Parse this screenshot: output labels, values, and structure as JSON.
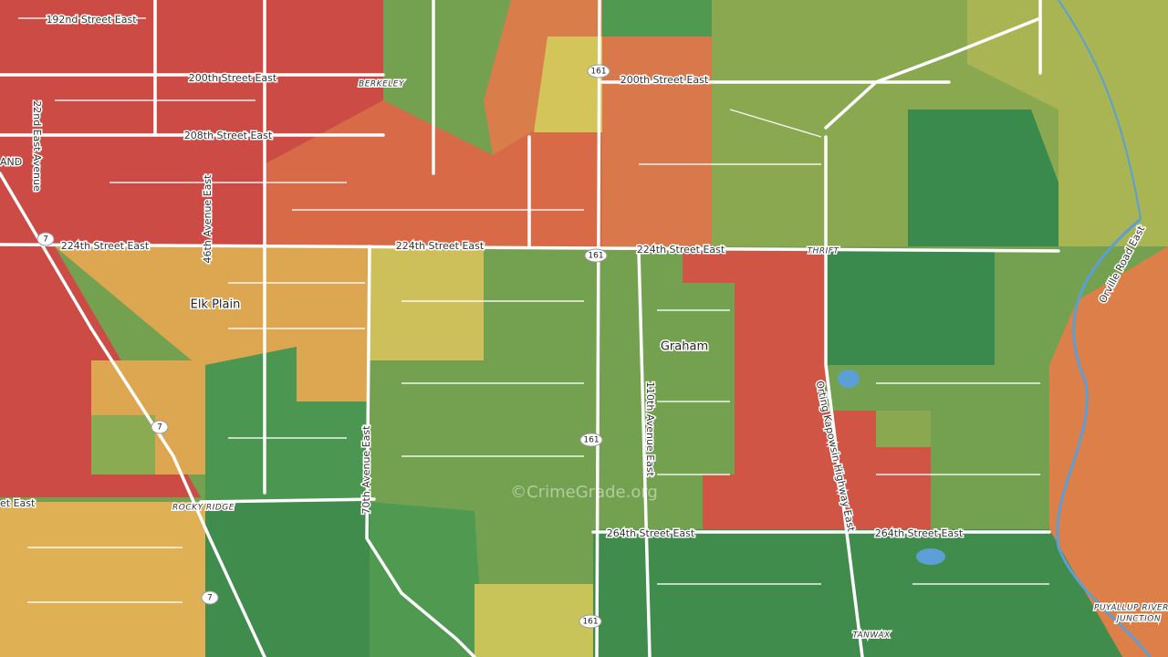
{
  "labels": [
    "192nd Street East",
    "200th Street East",
    "200th Street East",
    "208th Street East",
    "224th Street East",
    "224th Street East",
    "224th Street East",
    "BERKELEY",
    "AND",
    "22nd East Avenue",
    "46th Avenue East",
    "Elk Plain",
    "THRIFT",
    "Graham",
    "110th Avenue East",
    "70th Avenue East",
    "ROCKY RIDGE",
    "et East",
    "264th Street East",
    "264th Street East",
    "Orting Kapowsin Highway East",
    "Orville Road East",
    "PUYALLUP RIVER",
    "JUNCTION",
    "TANWAX"
  ],
  "route_shields": [
    "7",
    "7",
    "7",
    "161",
    "161",
    "161",
    "161"
  ],
  "watermark": "©CrimeGrade.org"
}
